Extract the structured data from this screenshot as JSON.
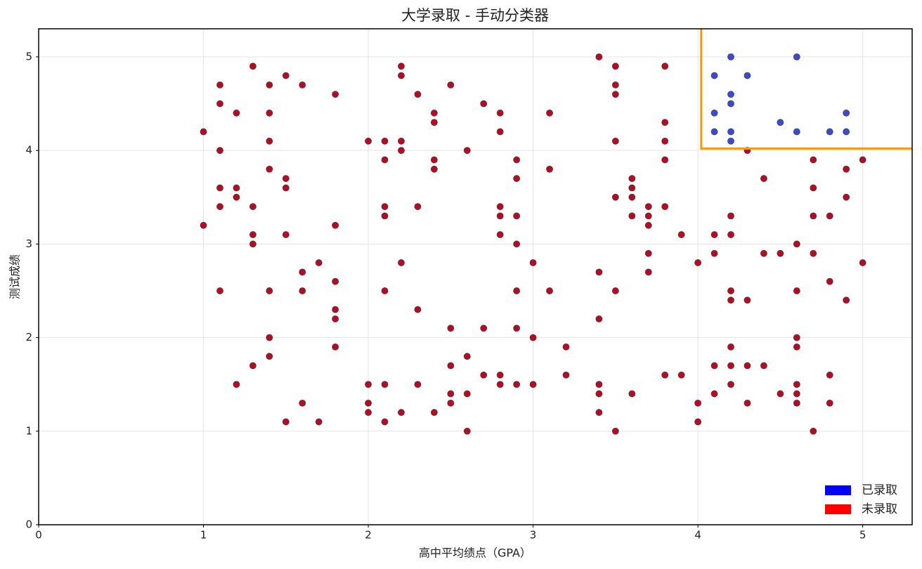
{
  "chart_data": {
    "type": "scatter",
    "title": "大学录取 - 手动分类器",
    "x_label": "高中平均绩点（GPA）",
    "y_label": "测试成绩",
    "xlim": [
      0,
      5.3
    ],
    "ylim": [
      0,
      5.3
    ],
    "xticks": [
      0,
      1,
      2,
      3,
      4,
      5
    ],
    "yticks": [
      0,
      1,
      2,
      3,
      4,
      5
    ],
    "grid": true,
    "legend": "lower right",
    "series": [
      {
        "name": "已录取",
        "color": "#3b4cc8",
        "legend_color": "#0000ff",
        "x": [
          4.1,
          4.2,
          4.3,
          4.6,
          4.2,
          4.2,
          4.1,
          4.9,
          4.5,
          4.1,
          4.2,
          4.6,
          4.8,
          4.9,
          4.2
        ],
        "y": [
          4.8,
          5.0,
          4.8,
          5.0,
          4.6,
          4.5,
          4.4,
          4.4,
          4.3,
          4.2,
          4.2,
          4.2,
          4.2,
          4.2,
          4.1
        ]
      },
      {
        "name": "未录取",
        "color": "#ad1026",
        "legend_color": "#ff0000",
        "x": [
          1.0,
          1.0,
          1.1,
          1.1,
          1.1,
          1.1,
          1.1,
          1.1,
          1.2,
          1.2,
          1.2,
          1.2,
          1.3,
          1.3,
          1.3,
          1.3,
          1.3,
          1.4,
          1.4,
          1.4,
          1.4,
          1.4,
          1.4,
          1.4,
          1.5,
          1.5,
          1.5,
          1.5,
          1.5,
          1.6,
          1.6,
          1.6,
          1.6,
          1.7,
          1.7,
          1.8,
          1.8,
          1.8,
          1.8,
          1.8,
          1.8,
          2.0,
          2.0,
          2.0,
          2.0,
          2.1,
          2.1,
          2.1,
          2.1,
          2.1,
          2.1,
          2.1,
          2.2,
          2.2,
          2.2,
          2.2,
          2.2,
          2.2,
          2.3,
          2.3,
          2.3,
          2.3,
          2.4,
          2.4,
          2.4,
          2.4,
          2.4,
          2.5,
          2.5,
          2.5,
          2.5,
          2.5,
          2.6,
          2.6,
          2.6,
          2.6,
          2.7,
          2.7,
          2.7,
          2.8,
          2.8,
          2.8,
          2.8,
          2.8,
          2.8,
          2.8,
          2.9,
          2.9,
          2.9,
          2.9,
          2.9,
          2.9,
          2.9,
          3.0,
          3.0,
          3.0,
          3.1,
          3.1,
          3.1,
          3.2,
          3.2,
          3.4,
          3.4,
          3.4,
          3.4,
          3.4,
          3.4,
          3.5,
          3.5,
          3.5,
          3.5,
          3.5,
          3.5,
          3.5,
          3.6,
          3.6,
          3.6,
          3.6,
          3.6,
          3.7,
          3.7,
          3.7,
          3.7,
          3.7,
          3.8,
          3.8,
          3.8,
          3.8,
          3.8,
          3.8,
          3.9,
          3.9,
          4.0,
          4.0,
          4.0,
          4.1,
          4.1,
          4.1,
          4.1,
          4.2,
          4.2,
          4.2,
          4.2,
          4.2,
          4.2,
          4.2,
          4.3,
          4.3,
          4.3,
          4.3,
          4.4,
          4.4,
          4.4,
          4.5,
          4.5,
          4.6,
          4.6,
          4.6,
          4.6,
          4.6,
          4.6,
          4.6,
          4.7,
          4.7,
          4.7,
          4.7,
          4.7,
          4.8,
          4.8,
          4.8,
          4.8,
          4.9,
          4.9,
          4.9,
          5.0,
          5.0
        ],
        "y": [
          4.2,
          3.2,
          4.7,
          4.5,
          4.0,
          3.6,
          3.4,
          2.5,
          4.4,
          3.6,
          3.5,
          1.5,
          4.9,
          3.4,
          3.1,
          3.0,
          1.7,
          4.7,
          4.4,
          4.1,
          3.8,
          2.5,
          2.0,
          1.8,
          4.8,
          3.7,
          3.6,
          3.1,
          1.1,
          4.7,
          2.7,
          2.5,
          1.3,
          2.8,
          1.1,
          4.6,
          3.2,
          2.6,
          2.3,
          2.2,
          1.9,
          4.1,
          1.5,
          1.3,
          1.2,
          4.1,
          3.9,
          3.4,
          3.3,
          2.5,
          1.5,
          1.1,
          4.9,
          4.8,
          4.1,
          4.0,
          2.8,
          1.2,
          4.6,
          3.4,
          2.3,
          1.5,
          4.4,
          4.3,
          3.9,
          3.8,
          1.2,
          4.7,
          2.1,
          1.7,
          1.4,
          1.3,
          4.0,
          1.8,
          1.4,
          1.0,
          4.5,
          2.1,
          1.6,
          4.4,
          4.2,
          3.4,
          3.3,
          3.1,
          1.6,
          1.5,
          3.9,
          3.7,
          3.3,
          3.0,
          2.5,
          2.1,
          1.5,
          2.8,
          2.0,
          1.5,
          4.4,
          3.8,
          2.5,
          1.9,
          1.6,
          5.0,
          2.7,
          2.2,
          1.5,
          1.4,
          1.2,
          4.9,
          4.7,
          4.6,
          4.1,
          3.5,
          2.5,
          1.0,
          3.7,
          3.6,
          3.5,
          3.3,
          1.4,
          3.4,
          3.3,
          3.2,
          2.9,
          2.7,
          4.9,
          4.3,
          4.1,
          3.9,
          3.4,
          1.6,
          3.1,
          1.6,
          2.8,
          1.3,
          1.1,
          3.1,
          2.9,
          1.7,
          1.4,
          3.3,
          3.1,
          2.5,
          2.4,
          1.9,
          1.7,
          1.5,
          4.0,
          2.4,
          1.7,
          1.3,
          3.7,
          2.9,
          1.7,
          2.9,
          1.4,
          3.0,
          2.5,
          2.0,
          1.9,
          1.5,
          1.4,
          1.3,
          3.9,
          3.6,
          3.3,
          2.9,
          1.0,
          3.3,
          2.6,
          1.6,
          1.3,
          3.8,
          3.5,
          2.4,
          3.9,
          2.8
        ]
      }
    ],
    "boundary": {
      "color": "#f39a1e",
      "x": [
        4.02,
        4.02,
        5.3
      ],
      "y": [
        5.3,
        4.02,
        4.02
      ]
    }
  }
}
